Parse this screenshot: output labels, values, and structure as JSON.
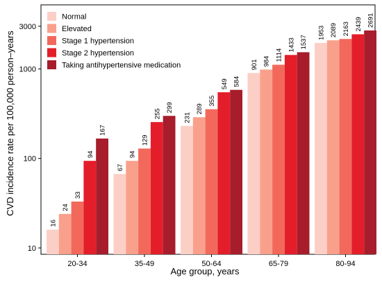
{
  "chart_data": {
    "type": "bar",
    "title": "",
    "xlabel": "Age group, years",
    "ylabel": "CVD incidence rate per 100,000 person–years",
    "y_scale": "log",
    "ylim": [
      8.5,
      5200
    ],
    "y_ticks": [
      10,
      100,
      1000,
      3000
    ],
    "y_tick_labels": [
      "10",
      "100",
      "1000",
      "3000"
    ],
    "grid": false,
    "legend_position": "top-left",
    "categories": [
      "20-34",
      "35-49",
      "50-64",
      "65-79",
      "80-94"
    ],
    "series": [
      {
        "name": "Normal",
        "color": "#FCCFC6",
        "values": [
          16,
          67,
          231,
          901,
          1953
        ]
      },
      {
        "name": "Elevated",
        "color": "#F9A08C",
        "values": [
          24,
          94,
          289,
          984,
          2089
        ]
      },
      {
        "name": "Stage 1 hypertension",
        "color": "#F2695C",
        "values": [
          33,
          129,
          355,
          1114,
          2163
        ]
      },
      {
        "name": "Stage 2 hypertension",
        "color": "#E31E2A",
        "values": [
          94,
          255,
          549,
          1433,
          2439
        ]
      },
      {
        "name": "Taking antihypertensive medication",
        "color": "#A71D2B",
        "values": [
          167,
          299,
          584,
          1537,
          2691
        ]
      }
    ]
  }
}
